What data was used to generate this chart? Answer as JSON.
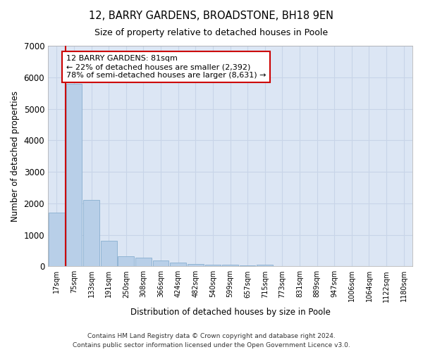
{
  "title": "12, BARRY GARDENS, BROADSTONE, BH18 9EN",
  "subtitle": "Size of property relative to detached houses in Poole",
  "xlabel": "Distribution of detached houses by size in Poole",
  "ylabel": "Number of detached properties",
  "categories": [
    "17sqm",
    "75sqm",
    "133sqm",
    "191sqm",
    "250sqm",
    "308sqm",
    "366sqm",
    "424sqm",
    "482sqm",
    "540sqm",
    "599sqm",
    "657sqm",
    "715sqm",
    "773sqm",
    "831sqm",
    "889sqm",
    "947sqm",
    "1006sqm",
    "1064sqm",
    "1122sqm",
    "1180sqm"
  ],
  "values": [
    1700,
    5800,
    2100,
    800,
    330,
    270,
    180,
    120,
    85,
    55,
    45,
    30,
    50,
    0,
    0,
    0,
    0,
    0,
    0,
    0,
    0
  ],
  "bar_color": "#b8cfe8",
  "bar_edge_color": "#88aed0",
  "annotation_text": "12 BARRY GARDENS: 81sqm\n← 22% of detached houses are smaller (2,392)\n78% of semi-detached houses are larger (8,631) →",
  "annotation_box_color": "white",
  "annotation_box_edgecolor": "#cc0000",
  "vline_color": "#cc0000",
  "vline_x": 0.5,
  "grid_color": "#c8d4e8",
  "background_color": "#dce6f4",
  "footer": "Contains HM Land Registry data © Crown copyright and database right 2024.\nContains public sector information licensed under the Open Government Licence v3.0.",
  "ylim": [
    0,
    7000
  ],
  "yticks": [
    0,
    1000,
    2000,
    3000,
    4000,
    5000,
    6000,
    7000
  ]
}
